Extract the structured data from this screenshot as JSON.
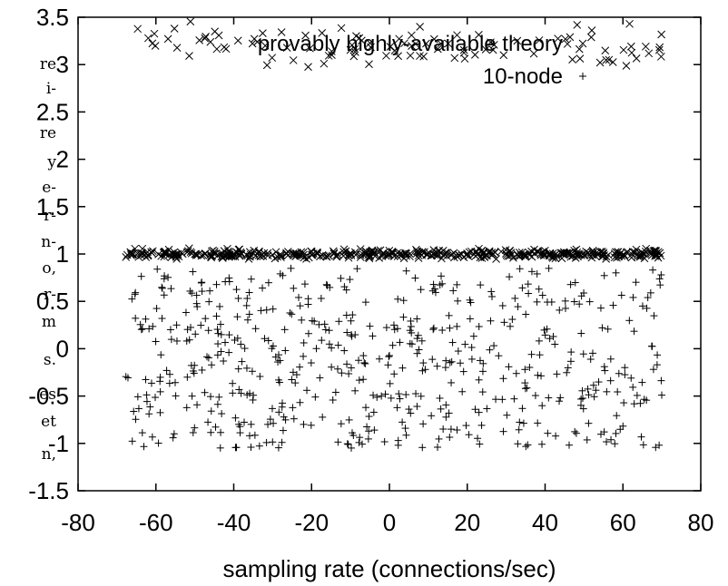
{
  "left_margin_text": [
    "re",
    "i-",
    "re",
    "y",
    "e-",
    "r-",
    "n-",
    "o,",
    "r-",
    "m",
    "s.",
    "es",
    "et",
    "n,"
  ],
  "chart_data": {
    "type": "scatter",
    "xlabel": "sampling rate (connections/sec)",
    "ylabel": "",
    "xlim": [
      -80,
      80
    ],
    "ylim": [
      -1.5,
      3.5
    ],
    "x_ticks": [
      "-80",
      "-60",
      "-40",
      "-20",
      "0",
      "20",
      "40",
      "60",
      "80"
    ],
    "y_ticks": [
      "-1.5",
      "-1",
      "-0.5",
      "0",
      "0.5",
      "1",
      "1.5",
      "2",
      "2.5",
      "3",
      "3.5"
    ],
    "grid": false,
    "legend_position": "top-center",
    "series": [
      {
        "name": "provably highly-available theory",
        "marker": "x",
        "color": "#000000",
        "x_range": [
          -68,
          70
        ],
        "clusters": [
          {
            "y_center": 3.2,
            "y_spread": 0.3,
            "count": 110
          },
          {
            "y_center": 1.0,
            "y_spread": 0.07,
            "count": 470
          }
        ]
      },
      {
        "name": "10-node",
        "marker": "+",
        "color": "#000000",
        "x_range": [
          -68,
          70
        ],
        "clusters": [
          {
            "y_center": -0.1,
            "y_spread": 0.95,
            "count": 560
          }
        ]
      }
    ]
  }
}
